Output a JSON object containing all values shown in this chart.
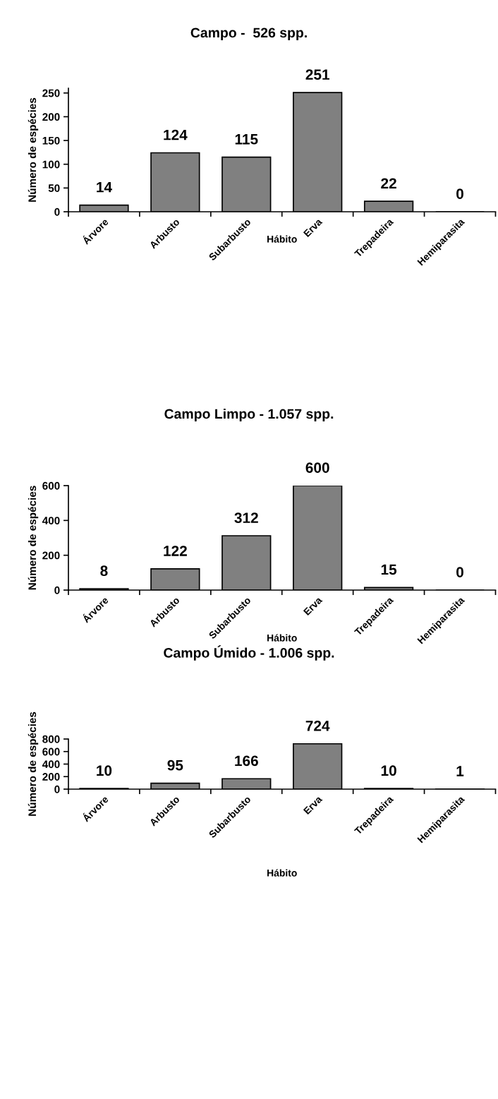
{
  "chart_data": [
    {
      "type": "bar",
      "title": "Campo -  526 spp.",
      "xlabel": "Hábito",
      "ylabel": "Número de espécies",
      "categories": [
        "Árvore",
        "Arbusto",
        "Subarbusto",
        "Erva",
        "Trepadeira",
        "Hemiparasita"
      ],
      "values": [
        14,
        124,
        115,
        251,
        22,
        0
      ],
      "color": "#808080",
      "ylim": [
        0,
        260
      ],
      "yticks": [
        0,
        50,
        100,
        150,
        200,
        250
      ],
      "data_labels": true,
      "grid": false,
      "legend": false
    },
    {
      "type": "bar",
      "title": "Campo Limpo - 1.057 spp.",
      "xlabel": "Hábito",
      "ylabel": "Número de espécies",
      "categories": [
        "Árvore",
        "Arbusto",
        "Subarbusto",
        "Erva",
        "Trepadeira",
        "Hemiparasita"
      ],
      "values": [
        8,
        122,
        312,
        600,
        15,
        0
      ],
      "color": "#808080",
      "ylim": [
        0,
        600
      ],
      "yticks": [
        0,
        200,
        400,
        600
      ],
      "data_labels": true,
      "grid": false,
      "legend": false
    },
    {
      "type": "bar",
      "title": "Campo Úmido - 1.006 spp.",
      "xlabel": "Hábito",
      "ylabel": "Número de espécies",
      "categories": [
        "Árvore",
        "Arbusto",
        "Subarbusto",
        "Erva",
        "Trepadeira",
        "Hemiparasita"
      ],
      "values": [
        10,
        95,
        166,
        724,
        10,
        1
      ],
      "color": "#808080",
      "ylim": [
        0,
        800
      ],
      "yticks": [
        0,
        200,
        400,
        600,
        800
      ],
      "data_labels": true,
      "grid": false,
      "legend": false
    }
  ]
}
